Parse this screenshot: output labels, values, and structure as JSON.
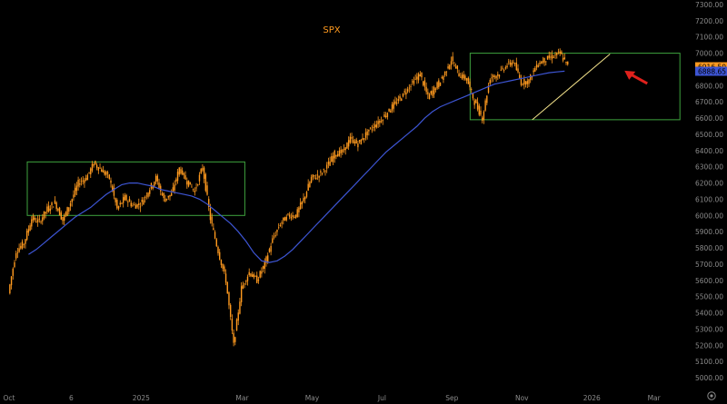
{
  "chart_data": {
    "type": "candlestick",
    "title": "SPX",
    "colors": {
      "background": "#000000",
      "candle": "#ff9a1f",
      "moving_average": "#3d55d4",
      "range_box": "#3fa33f",
      "trendline": "#f2e18a",
      "arrow": "#e0211c",
      "axis_text": "#8a8a8a",
      "last_price_bg": "#ff9a1f",
      "ma_price_bg": "#3d55d4"
    },
    "y_axis": {
      "min": 4950,
      "max": 7300,
      "ticks": [
        5000,
        5100,
        5200,
        5300,
        5400,
        5500,
        5600,
        5700,
        5800,
        5900,
        6000,
        6100,
        6200,
        6300,
        6400,
        6500,
        6600,
        6700,
        6800,
        6900,
        7000,
        7100,
        7200,
        7300
      ],
      "tick_labels": [
        "5000.00",
        "5100.00",
        "5200.00",
        "5300.00",
        "5400.00",
        "5500.00",
        "5600.00",
        "5700.00",
        "5800.00",
        "5900.00",
        "6000.00",
        "6100.00",
        "6200.00",
        "6300.00",
        "6400.00",
        "6500.00",
        "6600.00",
        "6700.00",
        "6800.00",
        "6900.00",
        "7000.00",
        "7100.00",
        "7200.00",
        "7300.00"
      ]
    },
    "x_axis": {
      "tick_labels": [
        "Oct",
        "6",
        "2025",
        "Mar",
        "May",
        "Jul",
        "Sep",
        "Nov",
        "2026",
        "Mar"
      ],
      "tick_index": [
        0,
        8,
        17,
        30,
        39,
        48,
        57,
        66,
        75,
        83
      ]
    },
    "price_labels": [
      {
        "value": 6916.5,
        "label": "6916.50",
        "kind": "last"
      },
      {
        "value": 6888.65,
        "label": "6888.65",
        "kind": "moving_average"
      }
    ],
    "weekly_closes": [
      5520,
      5780,
      5830,
      5980,
      5960,
      6040,
      6080,
      5970,
      6080,
      6200,
      6230,
      6320,
      6280,
      6230,
      6040,
      6110,
      6060,
      6070,
      6150,
      6230,
      6100,
      6130,
      6290,
      6210,
      6150,
      6300,
      5980,
      5780,
      5600,
      5200,
      5550,
      5650,
      5600,
      5700,
      5850,
      5950,
      6000,
      6000,
      6100,
      6230,
      6250,
      6300,
      6380,
      6390,
      6470,
      6440,
      6500,
      6550,
      6590,
      6650,
      6700,
      6760,
      6820,
      6870,
      6730,
      6790,
      6860,
      6960,
      6870,
      6840,
      6700,
      6600,
      6850,
      6870,
      6920,
      6950,
      6820,
      6830,
      6930,
      6960,
      6980,
      7000,
      6920
    ],
    "moving_average": [
      5760,
      5790,
      5830,
      5870,
      5910,
      5950,
      5990,
      6020,
      6050,
      6090,
      6130,
      6160,
      6190,
      6200,
      6200,
      6190,
      6180,
      6160,
      6150,
      6140,
      6130,
      6120,
      6100,
      6070,
      6030,
      5990,
      5950,
      5900,
      5840,
      5770,
      5720,
      5710,
      5720,
      5750,
      5790,
      5840,
      5890,
      5940,
      5990,
      6040,
      6090,
      6140,
      6190,
      6240,
      6290,
      6340,
      6390,
      6430,
      6470,
      6510,
      6550,
      6600,
      6640,
      6670,
      6690,
      6710,
      6730,
      6750,
      6770,
      6790,
      6810,
      6820,
      6830,
      6840,
      6850,
      6860,
      6870,
      6880,
      6885,
      6889
    ],
    "annotations": [
      {
        "type": "rectangle",
        "x_start": 0,
        "x_end": 28,
        "y_low": 6000,
        "y_high": 6330
      },
      {
        "type": "rectangle",
        "x_start": 57,
        "x_end": 84,
        "y_low": 6590,
        "y_high": 7000
      },
      {
        "type": "trendline",
        "x_start": 65,
        "y_start": 6590,
        "x_end": 75,
        "y_end": 6995
      },
      {
        "type": "arrow",
        "direction": "down-left",
        "target_x": 75,
        "target_y": 6920
      }
    ]
  }
}
